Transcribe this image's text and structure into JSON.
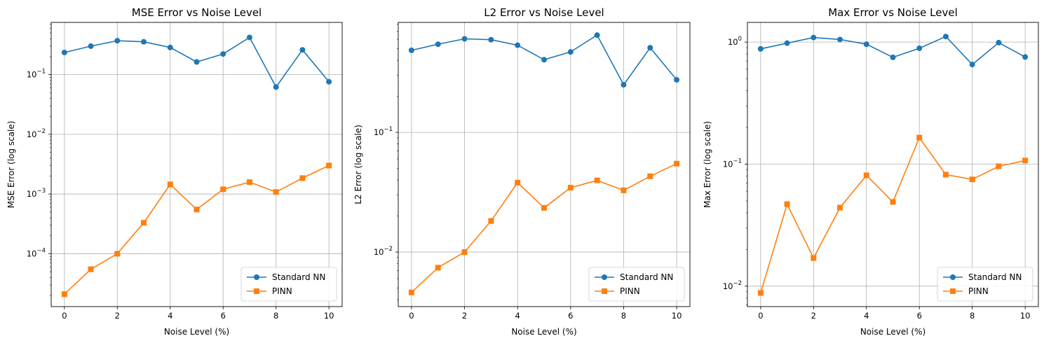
{
  "chart_data": [
    {
      "type": "line",
      "title": "MSE Error vs Noise Level",
      "xlabel": "Noise Level (%)",
      "ylabel": "MSE Error (log scale)",
      "yscale": "log",
      "xlim": [
        -0.5,
        10.5
      ],
      "ylim": [
        1.3e-05,
        0.75
      ],
      "xticks": [
        0,
        2,
        4,
        6,
        8,
        10
      ],
      "yticks": [
        {
          "value": 0.0001,
          "mantissa": "10",
          "exponent": "−4"
        },
        {
          "value": 0.001,
          "mantissa": "10",
          "exponent": "−3"
        },
        {
          "value": 0.01,
          "mantissa": "10",
          "exponent": "−2"
        },
        {
          "value": 0.1,
          "mantissa": "10",
          "exponent": "−1"
        }
      ],
      "grid": true,
      "legend_position": "lower-right",
      "x": [
        0,
        1,
        2,
        3,
        4,
        5,
        6,
        7,
        8,
        9,
        10
      ],
      "series": [
        {
          "name": "Standard NN",
          "color": "#1f77b4",
          "marker": "circle",
          "values": [
            0.235,
            0.3,
            0.37,
            0.355,
            0.285,
            0.163,
            0.222,
            0.42,
            0.062,
            0.26,
            0.076
          ]
        },
        {
          "name": "PINN",
          "color": "#ff7f0e",
          "marker": "square",
          "values": [
            2.1e-05,
            5.5e-05,
            0.0001,
            0.00033,
            0.00145,
            0.00055,
            0.0012,
            0.00158,
            0.00108,
            0.00185,
            0.003
          ]
        }
      ]
    },
    {
      "type": "line",
      "title": "L2 Error vs Noise Level",
      "xlabel": "Noise Level (%)",
      "ylabel": "L2 Error (log scale)",
      "yscale": "log",
      "xlim": [
        -0.5,
        10.5
      ],
      "ylim": [
        0.0035,
        0.83
      ],
      "xticks": [
        0,
        2,
        4,
        6,
        8,
        10
      ],
      "yticks": [
        {
          "value": 0.01,
          "mantissa": "10",
          "exponent": "−2"
        },
        {
          "value": 0.1,
          "mantissa": "10",
          "exponent": "−1"
        }
      ],
      "grid": true,
      "legend_position": "lower-right",
      "x": [
        0,
        1,
        2,
        3,
        4,
        5,
        6,
        7,
        8,
        9,
        10
      ],
      "series": [
        {
          "name": "Standard NN",
          "color": "#1f77b4",
          "marker": "circle",
          "values": [
            0.485,
            0.545,
            0.605,
            0.595,
            0.535,
            0.405,
            0.47,
            0.65,
            0.25,
            0.51,
            0.275
          ]
        },
        {
          "name": "PINN",
          "color": "#ff7f0e",
          "marker": "square",
          "values": [
            0.0046,
            0.0074,
            0.01,
            0.0182,
            0.038,
            0.0234,
            0.0345,
            0.0397,
            0.0328,
            0.043,
            0.0548
          ]
        }
      ]
    },
    {
      "type": "line",
      "title": "Max Error vs Noise Level",
      "xlabel": "Noise Level (%)",
      "ylabel": "Max Error (log scale)",
      "yscale": "log",
      "xlim": [
        -0.5,
        10.5
      ],
      "ylim": [
        0.0068,
        1.45
      ],
      "xticks": [
        0,
        2,
        4,
        6,
        8,
        10
      ],
      "yticks": [
        {
          "value": 0.01,
          "mantissa": "10",
          "exponent": "−2"
        },
        {
          "value": 0.1,
          "mantissa": "10",
          "exponent": "−1"
        },
        {
          "value": 1,
          "mantissa": "10",
          "exponent": "0"
        }
      ],
      "grid": true,
      "legend_position": "lower-right",
      "x": [
        0,
        1,
        2,
        3,
        4,
        5,
        6,
        7,
        8,
        9,
        10
      ],
      "series": [
        {
          "name": "Standard NN",
          "color": "#1f77b4",
          "marker": "circle",
          "values": [
            0.88,
            0.98,
            1.09,
            1.05,
            0.96,
            0.75,
            0.89,
            1.11,
            0.655,
            0.99,
            0.755
          ]
        },
        {
          "name": "PINN",
          "color": "#ff7f0e",
          "marker": "square",
          "values": [
            0.0088,
            0.047,
            0.017,
            0.044,
            0.081,
            0.049,
            0.165,
            0.082,
            0.075,
            0.096,
            0.107
          ]
        }
      ]
    }
  ]
}
